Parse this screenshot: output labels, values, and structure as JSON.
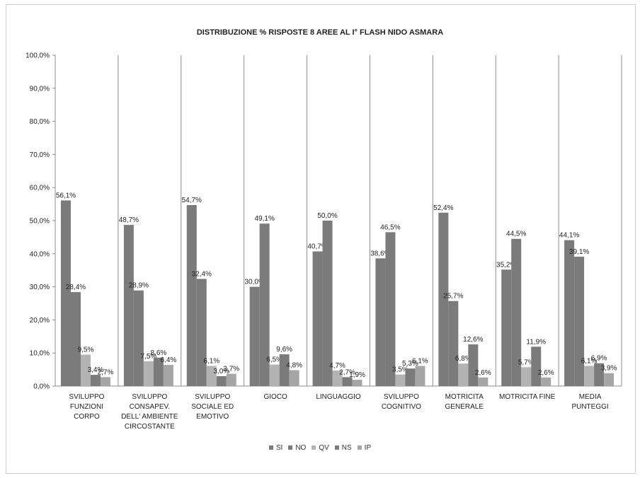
{
  "chart_data": {
    "type": "bar",
    "title": "DISTRIBUZIONE % RISPOSTE 8 AREE  AL I° FLASH NIDO ASMARA",
    "xlabel": "",
    "ylabel": "",
    "ylim": [
      0,
      100
    ],
    "yticks": [
      "0,0%",
      "10,0%",
      "20,0%",
      "30,0%",
      "40,0%",
      "50,0%",
      "60,0%",
      "70,0%",
      "80,0%",
      "90,0%",
      "100,0%"
    ],
    "grid": "vertical category separators",
    "legend_position": "bottom",
    "categories": [
      [
        "SVILUPPO",
        "FUNZIONI",
        "CORPO"
      ],
      [
        "SVILUPPO",
        "CONSAPEV.",
        "DELL' AMBIENTE",
        "CIRCOSTANTE"
      ],
      [
        "SVILUPPO",
        "SOCIALE ED",
        "EMOTIVO"
      ],
      [
        "GIOCO"
      ],
      [
        "LINGUAGGIO"
      ],
      [
        "SVILUPPO",
        "COGNITIVO"
      ],
      [
        "MOTRICITA",
        "GENERALE"
      ],
      [
        "MOTRICITA FINE"
      ],
      [
        "MEDIA",
        "PUNTEGGI"
      ]
    ],
    "series": [
      {
        "name": "SI",
        "color": "#7b7b7b",
        "values": [
          56.1,
          48.7,
          54.7,
          30.0,
          40.7,
          38.6,
          52.4,
          35.2,
          44.1
        ],
        "labels": [
          "56,1%",
          "48,7%",
          "54,7%",
          "30,0%",
          "40,7%",
          "38,6%",
          "52,4%",
          "35,2%",
          "44,1%"
        ]
      },
      {
        "name": "NO",
        "color": "#7b7b7b",
        "values": [
          28.4,
          28.9,
          32.4,
          49.1,
          50.0,
          46.5,
          25.7,
          44.5,
          39.1
        ],
        "labels": [
          "28,4%",
          "28,9%",
          "32,4%",
          "49,1%",
          "50,0%",
          "46,5%",
          "25,7%",
          "44,5%",
          "39,1%"
        ]
      },
      {
        "name": "QV",
        "color": "#b3b3b3",
        "values": [
          9.5,
          7.5,
          6.1,
          6.5,
          4.7,
          3.5,
          6.8,
          5.7,
          6.1
        ],
        "labels": [
          "9,5%",
          "7,5%",
          "6,1%",
          "6,5%",
          "4,7%",
          "3,5%",
          "6,8%",
          "5,7%",
          "6,1%"
        ]
      },
      {
        "name": "NS",
        "color": "#7b7b7b",
        "values": [
          3.4,
          8.6,
          3.0,
          9.6,
          2.7,
          5.3,
          12.6,
          11.9,
          6.9
        ],
        "labels": [
          "3,4%",
          "8,6%",
          "3,0%",
          "9,6%",
          "2,7%",
          "5,3%",
          "12,6%",
          "11,9%",
          "6,9%"
        ]
      },
      {
        "name": "IP",
        "color": "#a6a6a6",
        "values": [
          2.7,
          6.4,
          3.7,
          4.8,
          1.9,
          6.1,
          2.6,
          2.6,
          3.9
        ],
        "labels": [
          "2,7%",
          "6,4%",
          "3,7%",
          "4,8%",
          "1,9%",
          "6,1%",
          "2,6%",
          "2,6%",
          "3,9%"
        ]
      }
    ]
  }
}
